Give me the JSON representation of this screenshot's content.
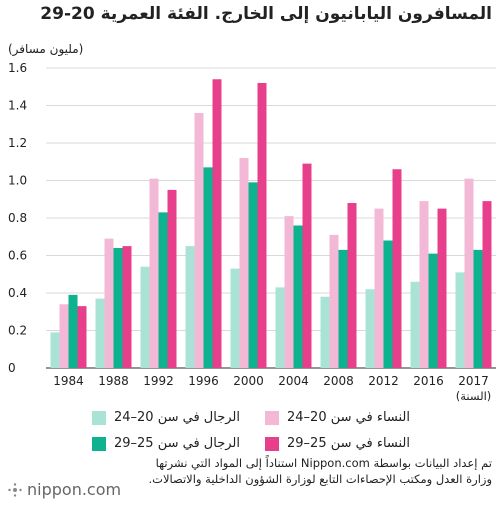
{
  "header": {
    "title": "المسافرون اليابانيون إلى الخارج. الفئة العمرية 20-29",
    "unit": "(مليون مسافر)"
  },
  "legend": [
    {
      "label": "النساء في سن 20–24",
      "color": "#f3b8d5"
    },
    {
      "label": "الرجال في سن 20–24",
      "color": "#a8e3d6"
    },
    {
      "label": "النساء في سن 25–29",
      "color": "#e73f8c"
    },
    {
      "label": "الرجال في سن 25–29",
      "color": "#0db28e"
    }
  ],
  "source_lines": [
    "تم إعداد البيانات بواسطة Nippon.com استناداً إلى المواد التي نشرتها",
    "وزارة العدل ومكتب الإحصاءات التابع لوزارة الشؤون الداخلية والاتصالات."
  ],
  "logo": {
    "text": "nippon.com",
    "icon": "nippon-logo-icon"
  },
  "chart_data": {
    "type": "bar",
    "categories": [
      "1984",
      "1988",
      "1992",
      "1996",
      "2000",
      "2004",
      "2008",
      "2012",
      "2016",
      "2017"
    ],
    "xlabel": "(السنة)",
    "ylabel": "(مليون مسافر)",
    "ylim": [
      0,
      1.6
    ],
    "yticks": [
      "0",
      "0.2",
      "0.4",
      "0.6",
      "0.8",
      "1.0",
      "1.2",
      "1.4",
      "1.6"
    ],
    "grid": true,
    "series": [
      {
        "name": "الرجال في سن 20–24",
        "color": "#a8e3d6",
        "values": [
          0.19,
          0.37,
          0.54,
          0.65,
          0.53,
          0.43,
          0.38,
          0.42,
          0.46,
          0.51
        ]
      },
      {
        "name": "النساء في سن 20–24",
        "color": "#f3b8d5",
        "values": [
          0.34,
          0.69,
          1.01,
          1.36,
          1.12,
          0.81,
          0.71,
          0.85,
          0.89,
          1.01
        ]
      },
      {
        "name": "الرجال في سن 25–29",
        "color": "#0db28e",
        "values": [
          0.39,
          0.64,
          0.83,
          1.07,
          0.99,
          0.76,
          0.63,
          0.68,
          0.61,
          0.63
        ]
      },
      {
        "name": "النساء في سن 25–29",
        "color": "#e73f8c",
        "values": [
          0.33,
          0.65,
          0.95,
          1.54,
          1.52,
          1.09,
          0.88,
          1.06,
          0.85,
          0.89
        ]
      }
    ]
  }
}
